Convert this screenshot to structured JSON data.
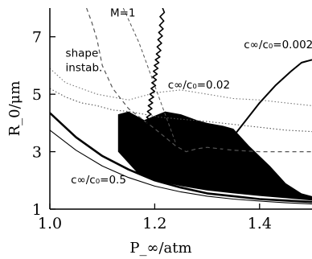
{
  "chart_data": {
    "type": "line",
    "xlabel": "P_∞/atm",
    "ylabel": "R_0/μm",
    "xlim": [
      1.0,
      1.5
    ],
    "ylim": [
      1.0,
      8.0
    ],
    "xticks": [
      {
        "value": 1.0,
        "label": "1.0"
      },
      {
        "value": 1.2,
        "label": "1.2"
      },
      {
        "value": 1.4,
        "label": "1.4"
      }
    ],
    "yticks": [
      {
        "value": 1,
        "label": "1"
      },
      {
        "value": 3,
        "label": "3"
      },
      {
        "value": 5,
        "label": "5"
      },
      {
        "value": 7,
        "label": "7"
      }
    ],
    "grid": false,
    "series": [
      {
        "style": "solid-thick",
        "color": "#000000",
        "x": [
          1.0,
          1.05,
          1.1,
          1.15,
          1.2,
          1.25,
          1.3,
          1.35,
          1.4,
          1.45,
          1.5
        ],
        "y": [
          4.35,
          3.5,
          2.85,
          2.38,
          2.0,
          1.75,
          1.55,
          1.45,
          1.35,
          1.3,
          1.25
        ]
      },
      {
        "style": "solid-thin",
        "color": "#000000",
        "x": [
          1.0,
          1.05,
          1.1,
          1.15,
          1.2,
          1.25,
          1.3,
          1.35,
          1.4,
          1.45,
          1.5
        ],
        "y": [
          3.75,
          3.05,
          2.5,
          2.1,
          1.8,
          1.6,
          1.45,
          1.35,
          1.28,
          1.22,
          1.18
        ]
      },
      {
        "style": "dotted",
        "color": "#555555",
        "x": [
          1.0,
          1.03,
          1.06,
          1.09,
          1.12,
          1.15,
          1.18,
          1.21,
          1.24,
          1.27,
          1.3,
          1.35,
          1.4,
          1.45,
          1.5
        ],
        "y": [
          5.2,
          4.9,
          4.7,
          4.6,
          4.45,
          4.4,
          4.3,
          4.2,
          4.15,
          4.1,
          4.05,
          3.95,
          3.85,
          3.75,
          3.7
        ]
      },
      {
        "style": "dotted",
        "color": "#777777",
        "x": [
          1.0,
          1.03,
          1.06,
          1.09,
          1.12,
          1.15,
          1.2,
          1.25,
          1.3,
          1.35,
          1.4,
          1.45,
          1.5
        ],
        "y": [
          5.9,
          5.4,
          5.2,
          5.0,
          4.9,
          4.8,
          5.05,
          5.15,
          5.0,
          4.85,
          4.8,
          4.7,
          4.6
        ]
      },
      {
        "style": "dashed",
        "color": "#555555",
        "x": [
          1.07,
          1.08,
          1.09,
          1.1,
          1.12,
          1.15,
          1.2,
          1.24,
          1.26,
          1.28,
          1.3,
          1.35,
          1.4,
          1.45,
          1.5
        ],
        "y": [
          8.0,
          7.5,
          6.9,
          6.0,
          5.2,
          4.5,
          3.8,
          3.2,
          3.0,
          3.1,
          3.15,
          3.05,
          3.0,
          3.0,
          3.0
        ]
      },
      {
        "style": "solid-wiggly",
        "color": "#000000",
        "x": [
          1.215,
          1.213,
          1.21,
          1.207,
          1.203,
          1.2,
          1.197,
          1.193,
          1.19,
          1.187
        ],
        "y": [
          8.0,
          7.4,
          6.9,
          6.4,
          6.0,
          5.6,
          5.2,
          4.8,
          4.4,
          4.0
        ]
      },
      {
        "style": "solid-medium",
        "color": "#000000",
        "x": [
          1.28,
          1.31,
          1.34,
          1.37,
          1.4,
          1.43,
          1.46,
          1.48,
          1.5
        ],
        "y": [
          1.8,
          2.5,
          3.3,
          4.0,
          4.7,
          5.3,
          5.8,
          6.1,
          6.2
        ]
      },
      {
        "style": "dashed-thin",
        "color": "#555555",
        "x": [
          1.14,
          1.15,
          1.16,
          1.17,
          1.18,
          1.19,
          1.2,
          1.21,
          1.22,
          1.23,
          1.24
        ],
        "y": [
          8.0,
          7.6,
          7.2,
          6.8,
          6.3,
          5.8,
          5.3,
          4.8,
          4.3,
          3.8,
          3.3
        ]
      }
    ],
    "region": {
      "fill": "#000000",
      "x": [
        1.13,
        1.15,
        1.18,
        1.2,
        1.22,
        1.25,
        1.28,
        1.3,
        1.33,
        1.35,
        1.38,
        1.42,
        1.45,
        1.48,
        1.5,
        1.5,
        1.45,
        1.4,
        1.35,
        1.3,
        1.25,
        1.2,
        1.17,
        1.15,
        1.13
      ],
      "y": [
        4.3,
        4.4,
        4.1,
        4.25,
        4.4,
        4.3,
        4.1,
        4.0,
        3.9,
        3.8,
        3.2,
        2.5,
        1.9,
        1.55,
        1.45,
        1.3,
        1.38,
        1.46,
        1.55,
        1.65,
        1.8,
        2.0,
        2.2,
        2.6,
        3.0
      ]
    },
    "annotations": [
      {
        "text": "M=1",
        "x": 1.115,
        "y": 7.7
      },
      {
        "text": "shape",
        "x": 1.03,
        "y": 6.3
      },
      {
        "text": "instab.",
        "x": 1.03,
        "y": 5.8
      },
      {
        "text": "c∞/c₀=0.002",
        "x": 1.37,
        "y": 6.6
      },
      {
        "text": "c∞/c₀=0.02",
        "x": 1.225,
        "y": 5.2
      },
      {
        "text": "c∞/c₀=0.5",
        "x": 1.04,
        "y": 1.9
      }
    ]
  }
}
